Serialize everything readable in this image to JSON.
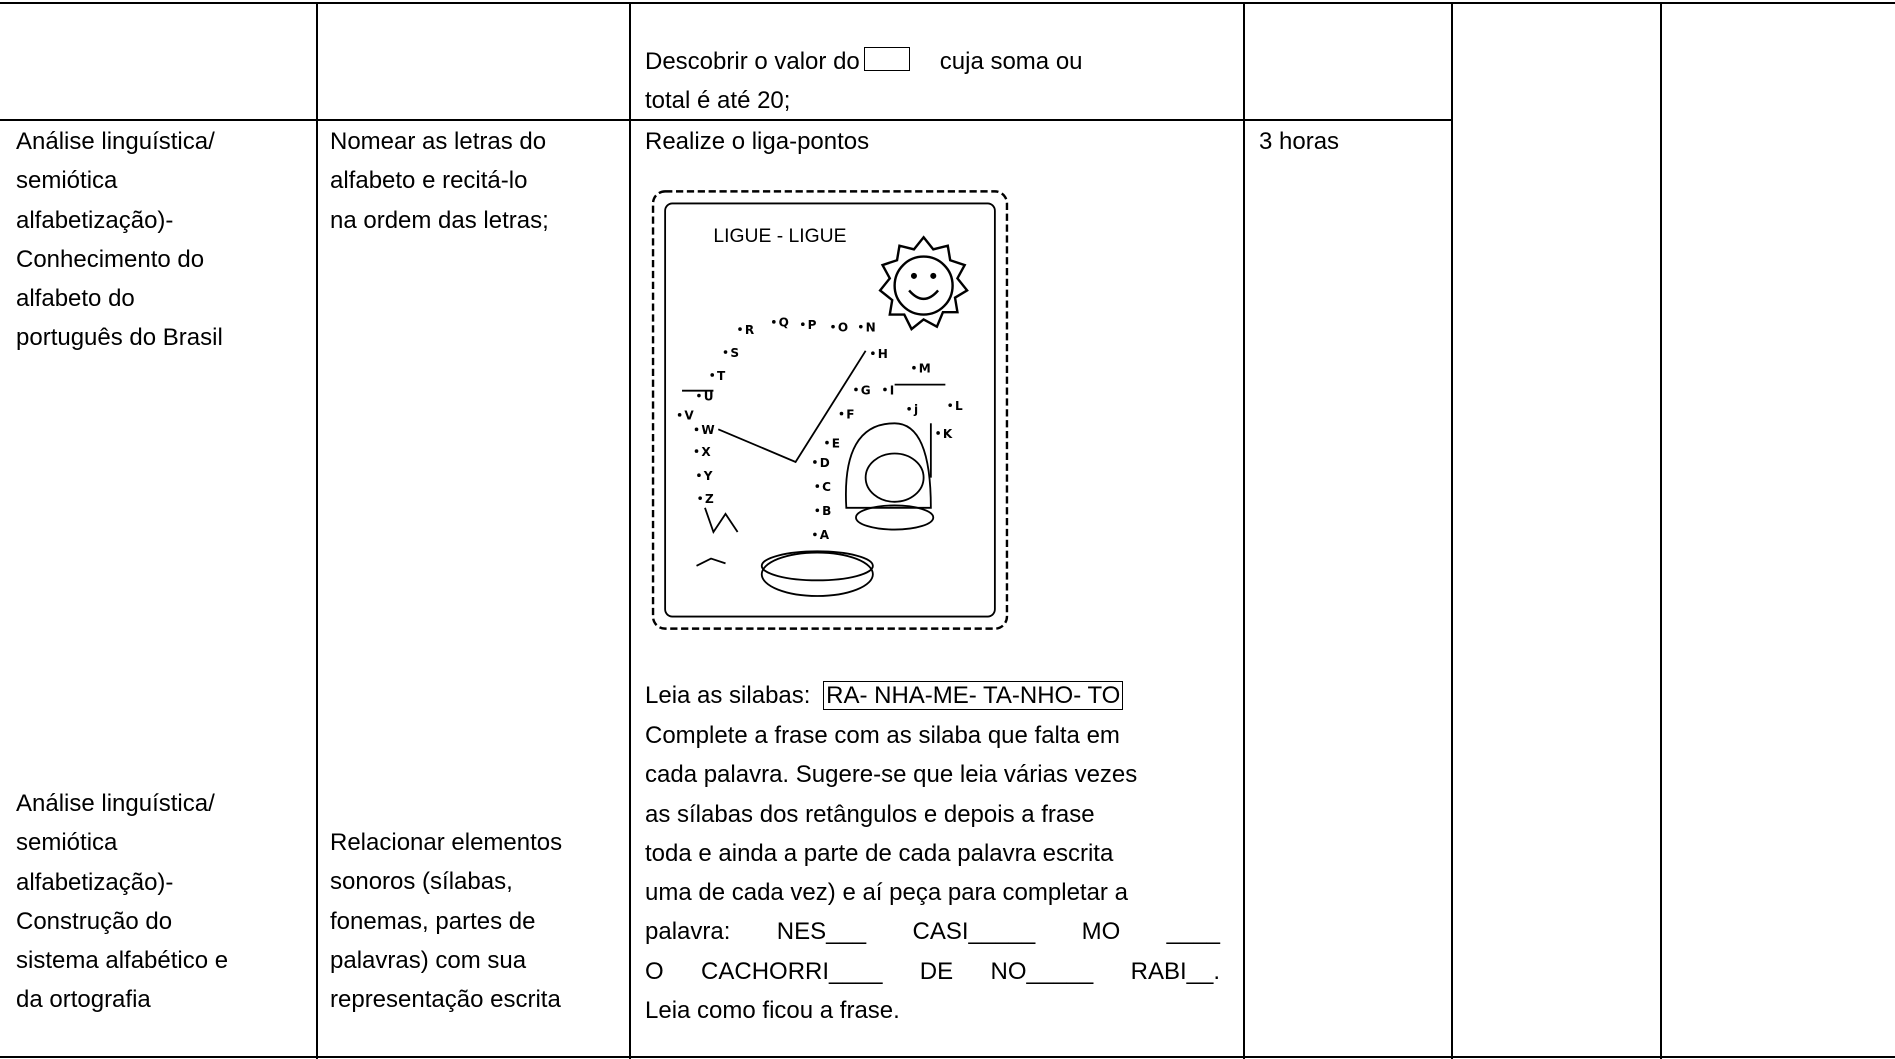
{
  "row0": {
    "activity_lines": [
      "Descobrir o valor do",
      "cuja  soma ou",
      "total é até 20;"
    ]
  },
  "row1": {
    "topic1": [
      "Análise linguística/",
      "semiótica",
      "alfabetização)-",
      "Conhecimento do",
      "alfabeto do",
      "português do Brasil"
    ],
    "skill1": [
      "Nomear as letras do",
      "alfabeto e recitá-lo",
      "na ordem das letras;"
    ],
    "activity": "Realize o liga-pontos",
    "time": "3 horas",
    "picture": {
      "title": "LIGUE - LIGUE",
      "letters": [
        "A",
        "B",
        "C",
        "D",
        "E",
        "F",
        "G",
        "H",
        "I",
        "j",
        "K",
        "L",
        "M",
        "N",
        "O",
        "P",
        "Q",
        "R",
        "S",
        "T",
        "U",
        "V",
        "W",
        "X",
        "Y",
        "Z"
      ]
    },
    "syllables_intro": "Leia as silabas:",
    "syllables": "RA- NHA-ME- TA-NHO- TO",
    "instructions": [
      "Complete a frase com as silaba que falta em",
      "cada palavra. Sugere-se que leia várias vezes",
      "as sílabas dos retângulos e depois a frase",
      "toda e ainda a parte de cada palavra escrita",
      "uma de cada vez) e aí peça para completar a",
      "palavra: NES___ CASI_____ MO ____",
      "O CACHORRI____ DE NO_____ RABI__.",
      "Leia como ficou a frase."
    ],
    "topic2": [
      "Análise linguística/",
      "semiótica",
      "alfabetização)-",
      "Construção do",
      "sistema alfabético e",
      "da ortografia"
    ],
    "skill2": [
      "Relacionar elementos",
      "sonoros (sílabas,",
      "fonemas, partes de",
      "palavras) com sua",
      "representação escrita"
    ]
  }
}
